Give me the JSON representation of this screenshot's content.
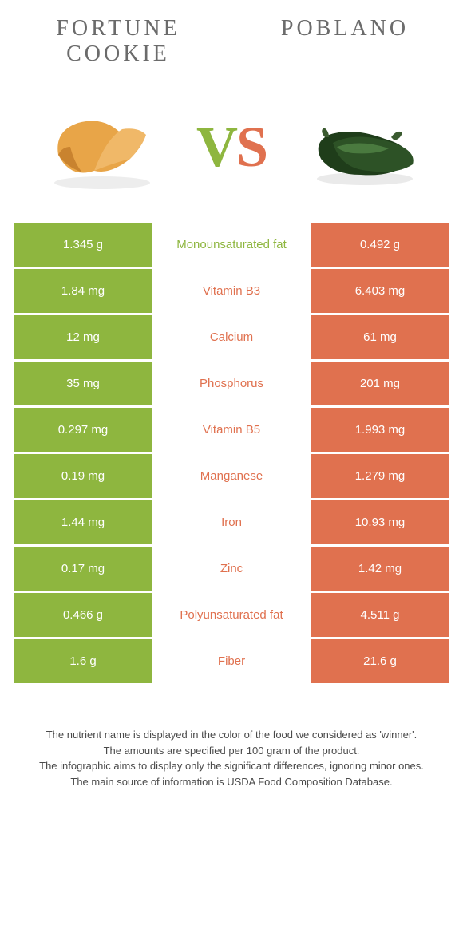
{
  "colors": {
    "left_bg": "#8eb63f",
    "right_bg": "#e0714f",
    "left_text": "#8eb63f",
    "right_text": "#e0714f",
    "title_color": "#6b6b6b",
    "footnote_color": "#4a4a4a"
  },
  "titles": {
    "left": "FORTUNE COOKIE",
    "right": "POBLANO"
  },
  "vs": {
    "v": "V",
    "s": "S"
  },
  "table": {
    "rows": [
      {
        "left": "1.345 g",
        "label": "Monounsaturated fat",
        "right": "0.492 g",
        "winner": "left"
      },
      {
        "left": "1.84 mg",
        "label": "Vitamin B3",
        "right": "6.403 mg",
        "winner": "right"
      },
      {
        "left": "12 mg",
        "label": "Calcium",
        "right": "61 mg",
        "winner": "right"
      },
      {
        "left": "35 mg",
        "label": "Phosphorus",
        "right": "201 mg",
        "winner": "right"
      },
      {
        "left": "0.297 mg",
        "label": "Vitamin B5",
        "right": "1.993 mg",
        "winner": "right"
      },
      {
        "left": "0.19 mg",
        "label": "Manganese",
        "right": "1.279 mg",
        "winner": "right"
      },
      {
        "left": "1.44 mg",
        "label": "Iron",
        "right": "10.93 mg",
        "winner": "right"
      },
      {
        "left": "0.17 mg",
        "label": "Zinc",
        "right": "1.42 mg",
        "winner": "right"
      },
      {
        "left": "0.466 g",
        "label": "Polyunsaturated fat",
        "right": "4.511 g",
        "winner": "right"
      },
      {
        "left": "1.6 g",
        "label": "Fiber",
        "right": "21.6 g",
        "winner": "right"
      }
    ]
  },
  "footnotes": [
    "The nutrient name is displayed in the color of the food we considered as 'winner'.",
    "The amounts are specified per 100 gram of the product.",
    "The infographic aims to display only the significant differences, ignoring minor ones.",
    "The main source of information is USDA Food Composition Database."
  ]
}
